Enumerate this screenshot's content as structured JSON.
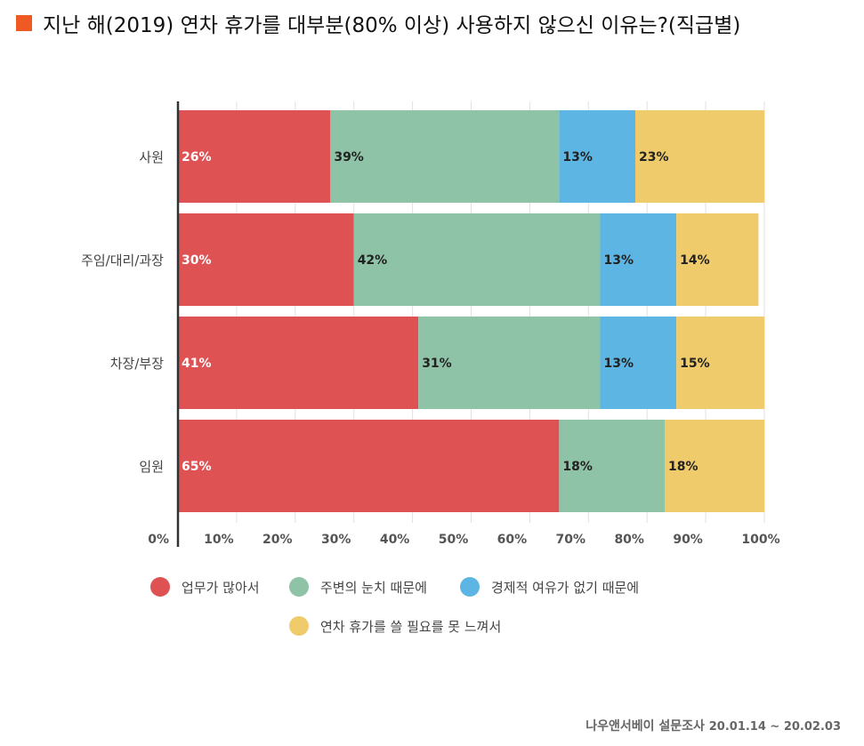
{
  "title": "지난 해(2019) 연차 휴가를  대부분(80% 이상) 사용하지 않으신 이유는?(직급별)",
  "colors": {
    "title_marker": "#ef5a24",
    "series": [
      "#de5254",
      "#8fc3a7",
      "#5db5e3",
      "#efcb6b"
    ]
  },
  "footer": {
    "source": "나우앤서베이 설문조사",
    "dates": "20.01.14 ~ 20.02.03"
  },
  "chart_data": {
    "type": "bar",
    "orientation": "horizontal",
    "stacked": true,
    "title": "지난 해(2019) 연차 휴가를  대부분(80% 이상) 사용하지 않으신 이유는?(직급별)",
    "categories": [
      "사원",
      "주임/대리/과장",
      "차장/부장",
      "임원"
    ],
    "series": [
      {
        "name": "업무가 많아서",
        "values": [
          26,
          30,
          41,
          65
        ]
      },
      {
        "name": "주변의 눈치 때문에",
        "values": [
          39,
          42,
          31,
          18
        ]
      },
      {
        "name": "경제적 여유가 없기 때문에",
        "values": [
          13,
          13,
          13,
          0
        ]
      },
      {
        "name": "연차 휴가를 쓸 필요를 못 느껴서",
        "values": [
          23,
          14,
          15,
          18
        ]
      }
    ],
    "value_labels": [
      [
        "26%",
        "39%",
        "13%",
        "23%"
      ],
      [
        "30%",
        "42%",
        "13%",
        "14%"
      ],
      [
        "41%",
        "31%",
        "13%",
        "15%"
      ],
      [
        "65%",
        "18%",
        "",
        "18%"
      ]
    ],
    "xticks": [
      "0%",
      "10%",
      "20%",
      "30%",
      "40%",
      "50%",
      "60%",
      "70%",
      "80%",
      "90%",
      "100%"
    ],
    "xlim": [
      0,
      100
    ],
    "grid": true,
    "legend_position": "bottom-center"
  }
}
